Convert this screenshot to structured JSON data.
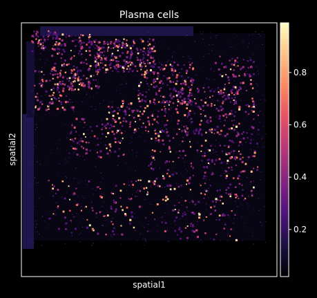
{
  "chart_data": {
    "type": "heatmap",
    "title": "Plasma cells",
    "xlabel": "spatial1",
    "ylabel": "spatial2",
    "colormap": "magma",
    "colors": {
      "background": "#000000",
      "axes": "#ffffff",
      "text": "#ffffff",
      "colormap_stops": [
        "#000004",
        "#1c1044",
        "#4f127b",
        "#812581",
        "#b5367a",
        "#e55064",
        "#fb8761",
        "#fec287",
        "#fcfdbf"
      ]
    },
    "grid": false,
    "colorbar": {
      "position": "right",
      "range": [
        0.02,
        0.99
      ],
      "ticks": [
        0.2,
        0.4,
        0.6,
        0.8
      ],
      "tick_labels": [
        "0.2",
        "0.4",
        "0.6",
        "0.8"
      ]
    },
    "tissue_extent": {
      "spatial1": [
        0.0,
        1.0
      ],
      "spatial2": [
        0.0,
        1.0
      ]
    }
  }
}
